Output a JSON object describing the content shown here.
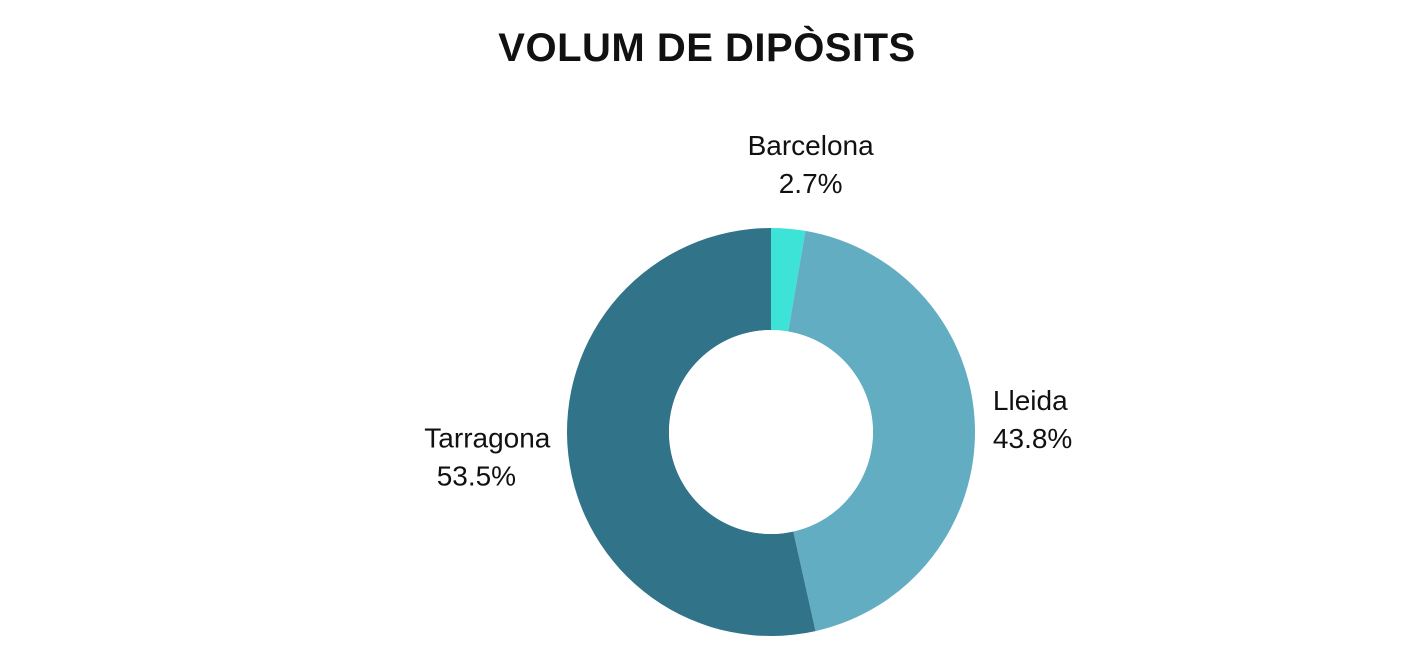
{
  "chart_data": {
    "type": "pie",
    "title": "VOLUM DE DIPÒSITS",
    "donut": true,
    "categories": [
      "Barcelona",
      "Lleida",
      "Tarragona"
    ],
    "values": [
      2.7,
      43.8,
      53.5
    ],
    "value_labels": [
      "2.7%",
      "43.8%",
      "53.5%"
    ],
    "colors": [
      "#3de3d6",
      "#62adc1",
      "#317388"
    ],
    "legend": "none",
    "label_placement": "outside"
  }
}
